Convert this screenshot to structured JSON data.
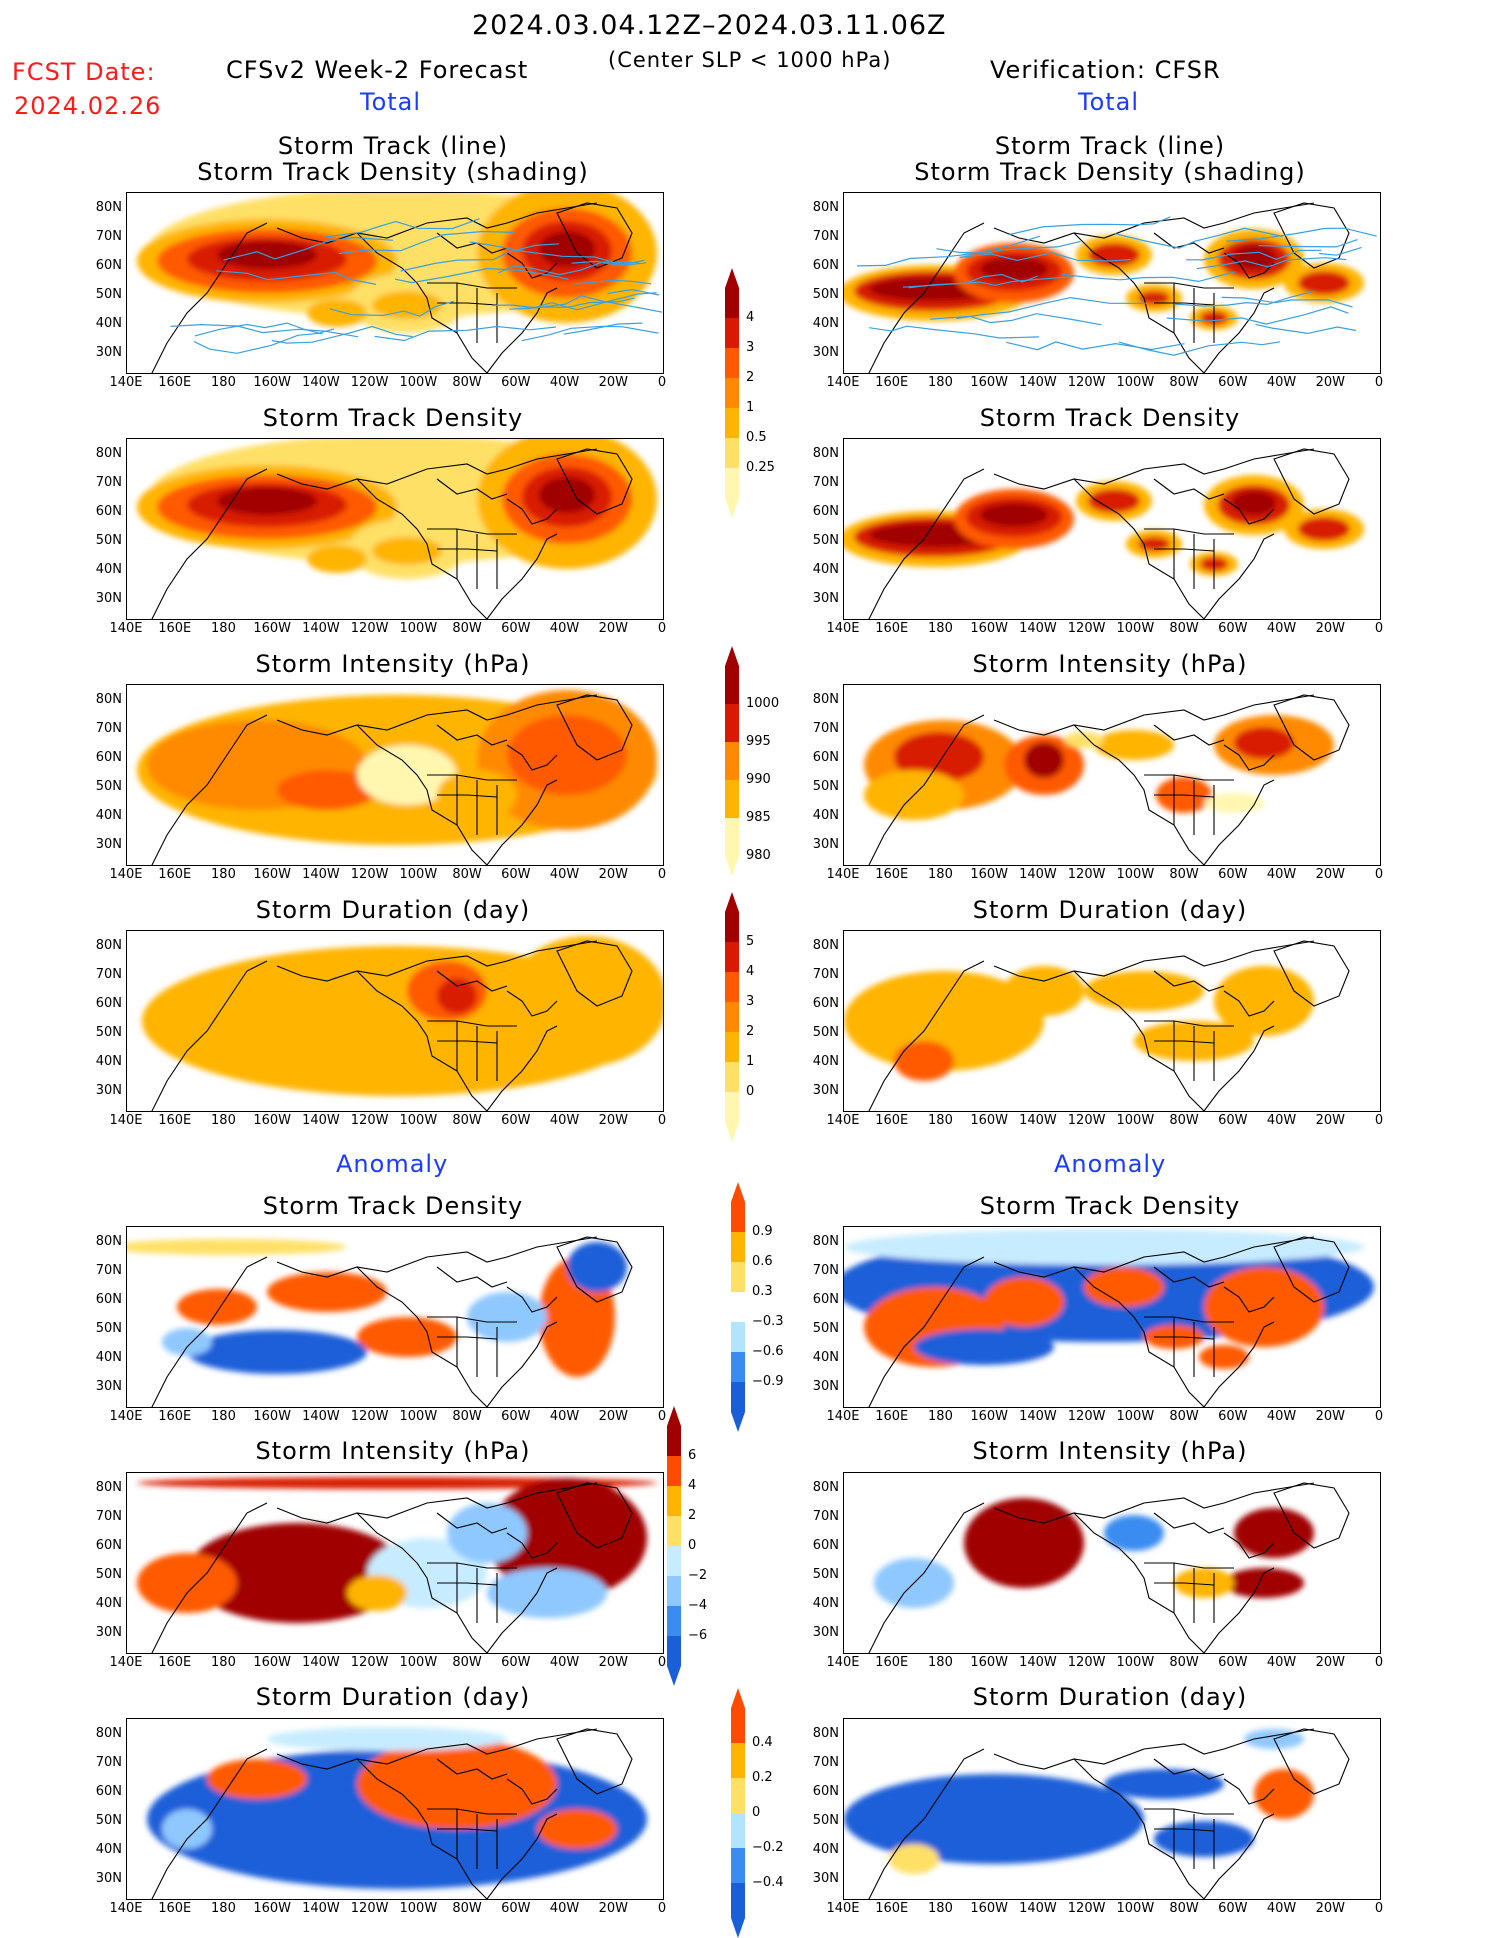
{
  "header": {
    "title": "2024.03.04.12Z–2024.03.11.06Z",
    "subtitle": "(Center SLP < 1000 hPa)",
    "fcst_label": "FCST Date:",
    "fcst_date": "2024.02.26",
    "left_label": "CFSv2 Week-2 Forecast",
    "right_label": "Verification: CFSR",
    "total_left": "Total",
    "total_right": "Total",
    "anomaly_left": "Anomaly",
    "anomaly_right": "Anomaly"
  },
  "panel_titles": {
    "track_line": "Storm Track (line)",
    "track_shading": "Storm Track Density (shading)",
    "density": "Storm Track Density",
    "intensity": "Storm Intensity (hPa)",
    "duration": "Storm Duration (day)"
  },
  "axes": {
    "lat_ticks": [
      "80N",
      "70N",
      "60N",
      "50N",
      "40N",
      "30N"
    ],
    "lon_ticks": [
      "140E",
      "160E",
      "180",
      "160W",
      "140W",
      "120W",
      "100W",
      "80W",
      "60W",
      "40W",
      "20W",
      "0"
    ]
  },
  "colorbars": {
    "density_total": {
      "ticks": [
        "4",
        "3",
        "2",
        "1",
        "0.5",
        "0.25"
      ],
      "colors": [
        "#fff7b0",
        "#ffe066",
        "#ffb400",
        "#ff8a00",
        "#ff5a00",
        "#d81b00",
        "#a00000"
      ]
    },
    "intensity_total": {
      "ticks": [
        "1000",
        "995",
        "990",
        "985",
        "980"
      ],
      "colors": [
        "#fff7b0",
        "#ffb400",
        "#ff8a00",
        "#d81b00",
        "#a00000"
      ]
    },
    "duration_total": {
      "ticks": [
        "5",
        "4",
        "3",
        "2",
        "1",
        "0"
      ],
      "colors": [
        "#fff7b0",
        "#ffe066",
        "#ffb400",
        "#ff8a00",
        "#ff5a00",
        "#d81b00",
        "#a00000"
      ]
    },
    "density_anom": {
      "ticks": [
        "0.9",
        "0.6",
        "0.3",
        "−0.3",
        "−0.6",
        "−0.9"
      ],
      "colors": [
        "#1a5fd8",
        "#3a8cf0",
        "#b0e4ff",
        "#ffffff",
        "#ffe066",
        "#ffb400",
        "#ff4a00"
      ]
    },
    "intensity_anom": {
      "ticks": [
        "6",
        "4",
        "2",
        "0",
        "−2",
        "−4",
        "−6"
      ],
      "colors": [
        "#1a5fd8",
        "#3a8cf0",
        "#8fc8ff",
        "#c8ecff",
        "#ffe066",
        "#ffb400",
        "#ff4a00",
        "#a00000"
      ]
    },
    "duration_anom": {
      "ticks": [
        "0.4",
        "0.2",
        "0",
        "−0.2",
        "−0.4"
      ],
      "colors": [
        "#1a5fd8",
        "#3a8cf0",
        "#b0e4ff",
        "#ffe066",
        "#ffb400",
        "#ff4a00"
      ]
    }
  }
}
